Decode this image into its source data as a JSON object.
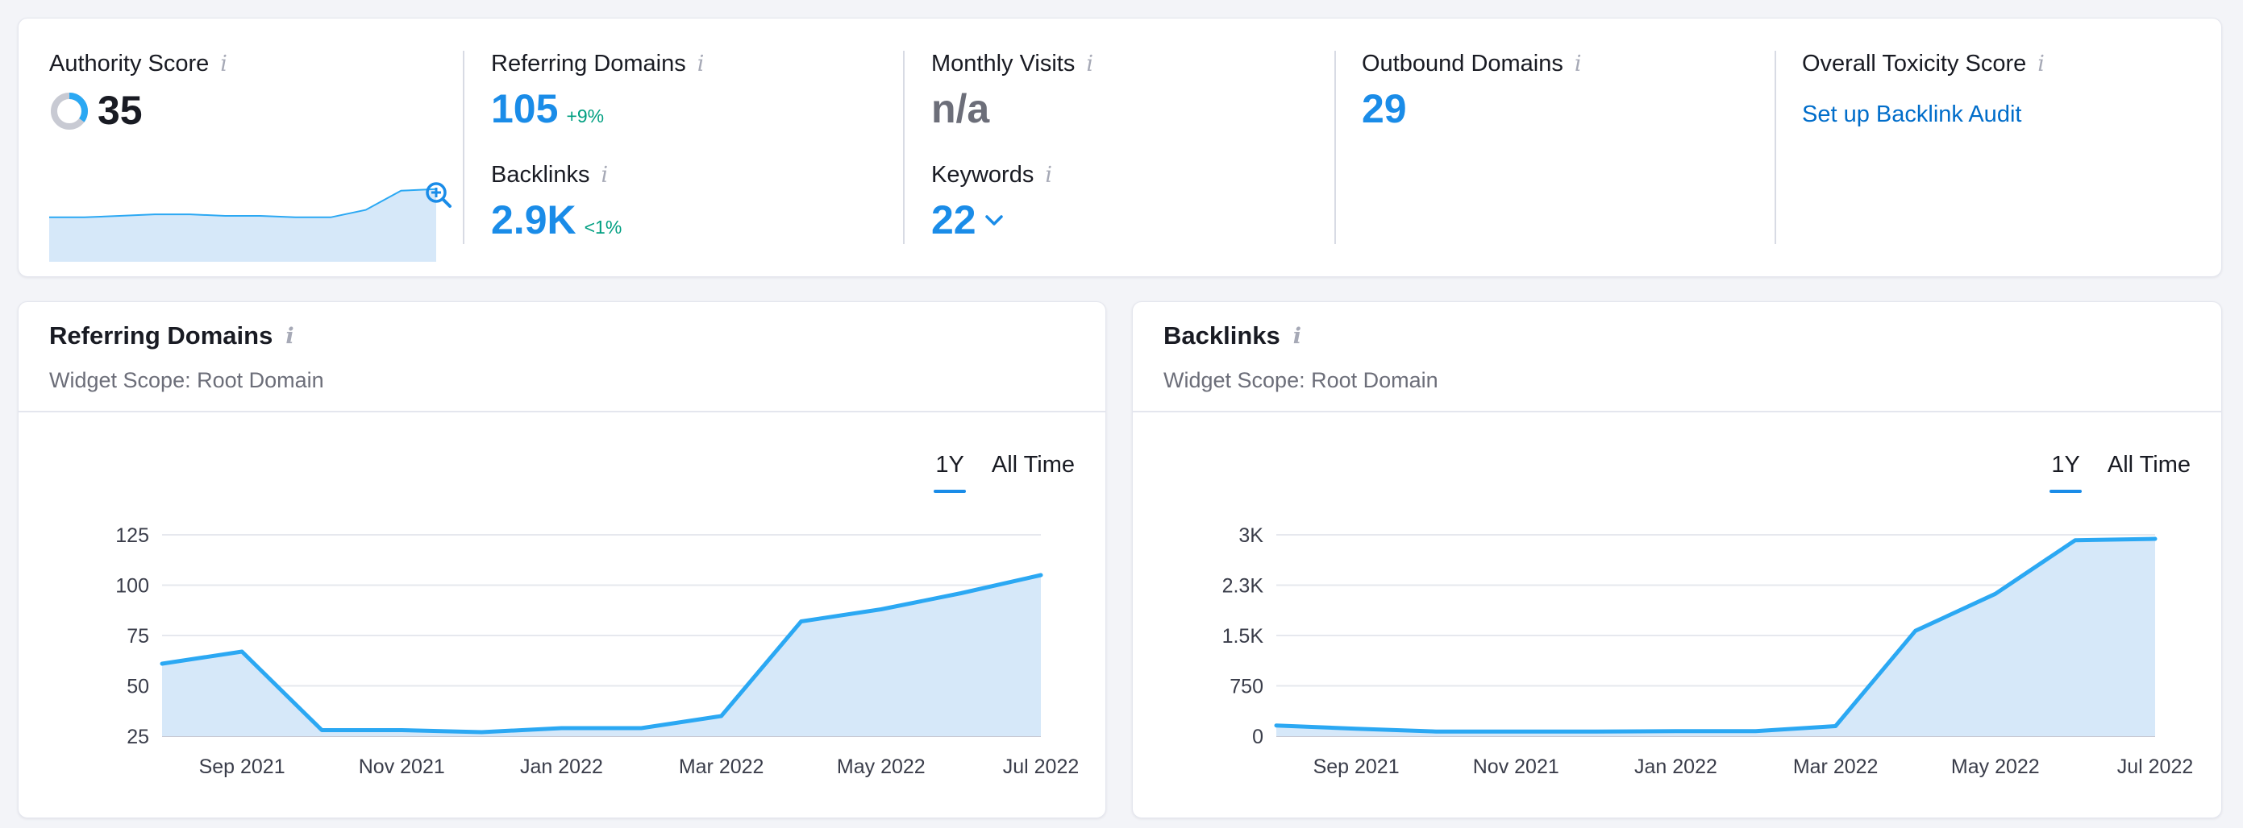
{
  "summary": {
    "authority": {
      "label": "Authority Score",
      "value": "35",
      "score": 35
    },
    "referring_domains": {
      "label": "Referring Domains",
      "value": "105",
      "delta": "+9%"
    },
    "backlinks": {
      "label": "Backlinks",
      "value": "2.9K",
      "delta": "<1%"
    },
    "monthly_visits": {
      "label": "Monthly Visits",
      "value": "n/a"
    },
    "keywords": {
      "label": "Keywords",
      "value": "22"
    },
    "outbound_domains": {
      "label": "Outbound Domains",
      "value": "29"
    },
    "toxicity": {
      "label": "Overall Toxicity Score",
      "link": "Set up Backlink Audit"
    }
  },
  "colors": {
    "accent": "#1a8ce8",
    "line": "#2ba8f3",
    "area": "#d6e8f9",
    "positive": "#009f81",
    "link": "#006dca"
  },
  "icons": [
    "info-icon",
    "zoom-in-icon",
    "chevron-down-icon",
    "donut-score-icon"
  ],
  "referring_domains_widget": {
    "title": "Referring Domains",
    "scope": "Widget Scope: Root Domain",
    "tabs": [
      "1Y",
      "All Time"
    ],
    "active_tab": "1Y"
  },
  "backlinks_widget": {
    "title": "Backlinks",
    "scope": "Widget Scope: Root Domain",
    "tabs": [
      "1Y",
      "All Time"
    ],
    "active_tab": "1Y"
  },
  "chart_data": [
    {
      "type": "line",
      "y_ticks": [
        "25",
        "50",
        "75",
        "100",
        "125"
      ],
      "ylim": [
        25,
        125
      ],
      "x_ticks": [
        "Sep 2021",
        "Nov 2021",
        "Jan 2022",
        "Mar 2022",
        "May 2022",
        "Jul 2022"
      ],
      "x": [
        "2021-08-01",
        "2021-09-01",
        "2021-10-01",
        "2021-11-01",
        "2021-12-01",
        "2022-01-01",
        "2022-02-01",
        "2022-03-01",
        "2022-04-01",
        "2022-05-01",
        "2022-06-01",
        "2022-07-01"
      ],
      "values": [
        61,
        67,
        28,
        28,
        27,
        29,
        29,
        35,
        82,
        88,
        96,
        105
      ],
      "grid": true
    },
    {
      "type": "line",
      "y_ticks": [
        "0",
        "750",
        "1.5K",
        "2.3K",
        "3K"
      ],
      "ylim": [
        0,
        3000
      ],
      "x_ticks": [
        "Sep 2021",
        "Nov 2021",
        "Jan 2022",
        "Mar 2022",
        "May 2022",
        "Jul 2022"
      ],
      "x": [
        "2021-08-01",
        "2021-09-01",
        "2021-10-01",
        "2021-11-01",
        "2021-12-01",
        "2022-01-01",
        "2022-02-01",
        "2022-03-01",
        "2022-04-01",
        "2022-05-01",
        "2022-06-01",
        "2022-07-01"
      ],
      "values": [
        160,
        110,
        70,
        70,
        70,
        75,
        75,
        150,
        1570,
        2120,
        2920,
        2940
      ],
      "grid": true
    },
    {
      "type": "area",
      "values": [
        30,
        30,
        31,
        32,
        32,
        31,
        31,
        30,
        30,
        35,
        48,
        49
      ],
      "grid": false
    }
  ]
}
